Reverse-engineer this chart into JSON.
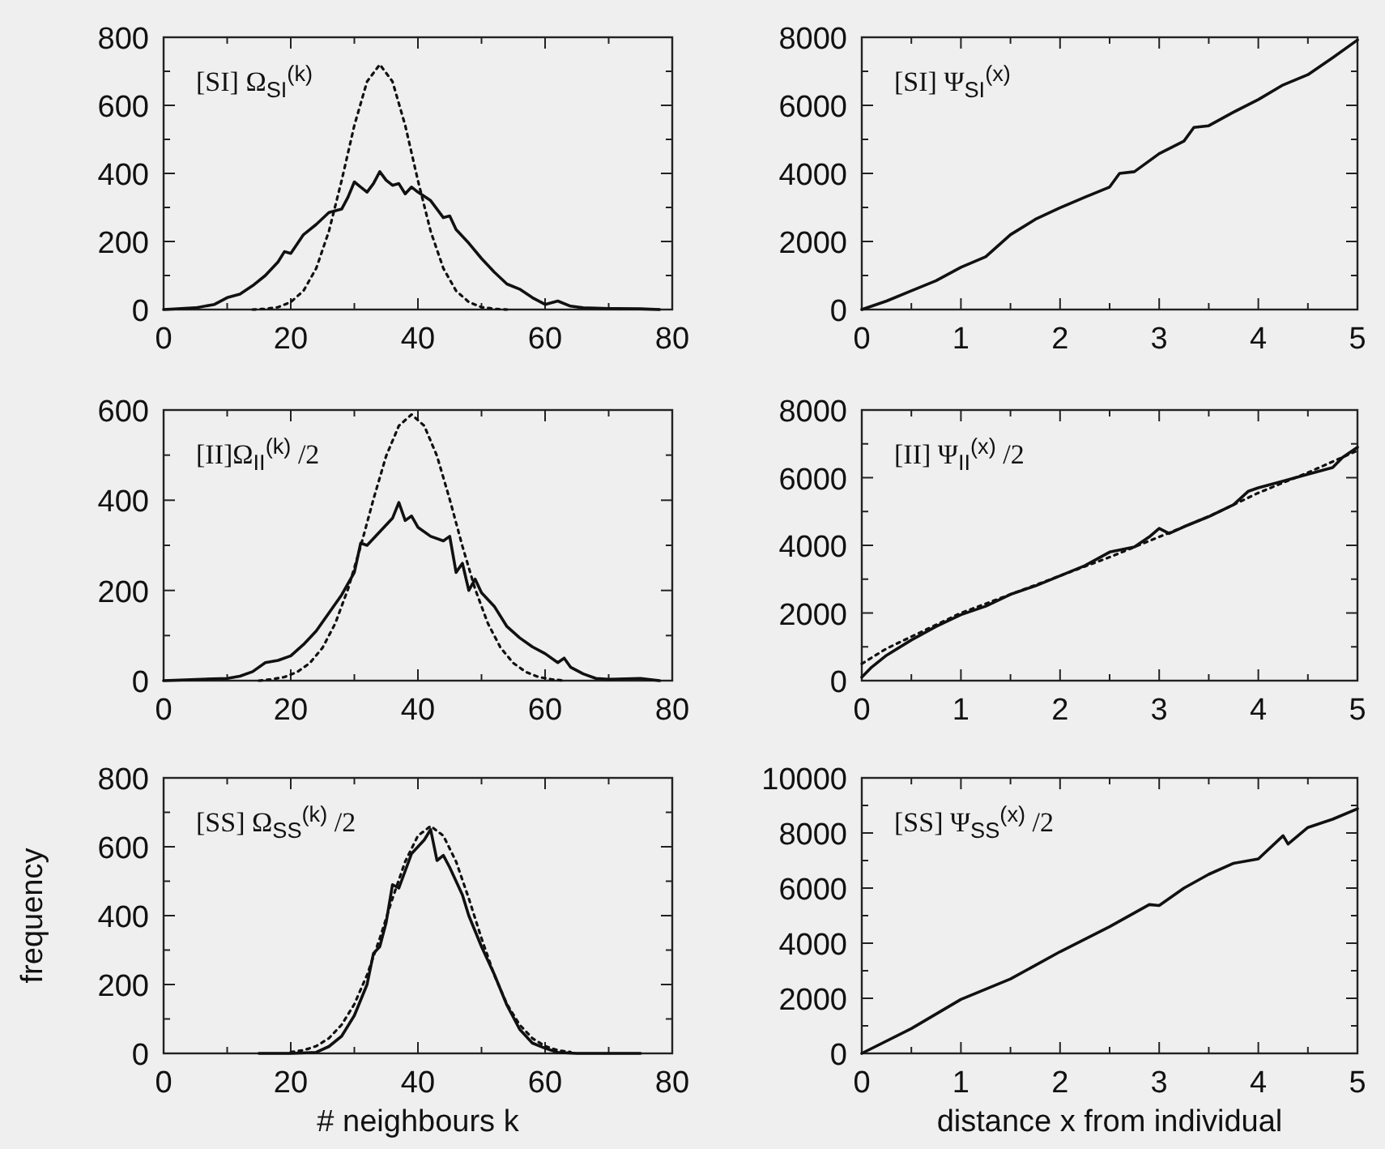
{
  "chart_data": [
    {
      "type": "line",
      "title": "[SI] Ω$_{SI}$$^{(k)}$",
      "xlim": [
        0,
        80
      ],
      "ylim": [
        0,
        800
      ],
      "xticks": [
        0,
        {
          "value": 10,
          "label": null
        },
        20,
        {
          "value": 30,
          "label": null
        },
        40,
        {
          "value": 50,
          "label": null
        },
        60,
        {
          "value": 70,
          "label": null
        },
        80
      ],
      "yticks": [
        0,
        {
          "value": 100,
          "label": null
        },
        200,
        {
          "value": 300,
          "label": null
        },
        400,
        {
          "value": 500,
          "label": null
        },
        600,
        {
          "value": 700,
          "label": null
        },
        800
      ],
      "series": [
        {
          "color": "#111111",
          "line_style": "solid",
          "x": [
            0,
            5,
            8,
            10,
            12,
            14,
            16,
            18,
            19,
            20,
            22,
            24,
            26,
            28,
            29,
            30,
            31,
            32,
            33,
            34,
            35,
            36,
            37,
            38,
            39,
            40,
            42,
            44,
            45,
            46,
            48,
            50,
            52,
            54,
            56,
            58,
            60,
            62,
            64,
            66,
            70,
            75,
            78
          ],
          "values": [
            0,
            5,
            15,
            35,
            45,
            70,
            100,
            140,
            170,
            165,
            220,
            250,
            285,
            295,
            330,
            375,
            360,
            345,
            370,
            405,
            380,
            365,
            370,
            340,
            360,
            345,
            320,
            270,
            275,
            235,
            195,
            150,
            110,
            75,
            60,
            35,
            15,
            25,
            10,
            5,
            3,
            2,
            0
          ]
        },
        {
          "color": "#111111",
          "line_style": "dotted",
          "x": [
            14,
            16,
            18,
            20,
            22,
            24,
            26,
            28,
            30,
            32,
            34,
            36,
            38,
            40,
            42,
            44,
            46,
            48,
            50,
            52,
            54
          ],
          "values": [
            0,
            2,
            7,
            22,
            55,
            121,
            230,
            379,
            541,
            670,
            720,
            670,
            541,
            379,
            230,
            121,
            55,
            22,
            7,
            2,
            0
          ]
        }
      ]
    },
    {
      "type": "line",
      "title": "[SI] Ψ$_{SI}$$^{(x)}$",
      "xlim": [
        0,
        5
      ],
      "ylim": [
        0,
        8000
      ],
      "xticks": [
        0,
        {
          "value": 0.5,
          "label": null
        },
        1,
        {
          "value": 1.5,
          "label": null
        },
        2,
        {
          "value": 2.5,
          "label": null
        },
        3,
        {
          "value": 3.5,
          "label": null
        },
        4,
        {
          "value": 4.5,
          "label": null
        },
        5
      ],
      "yticks": [
        0,
        {
          "value": 1000,
          "label": null
        },
        2000,
        {
          "value": 3000,
          "label": null
        },
        4000,
        {
          "value": 5000,
          "label": null
        },
        6000,
        {
          "value": 7000,
          "label": null
        },
        8000
      ],
      "series": [
        {
          "color": "#111111",
          "line_style": "solid",
          "x": [
            0,
            0.25,
            0.5,
            0.75,
            1,
            1.25,
            1.5,
            1.75,
            2,
            2.25,
            2.5,
            2.6,
            2.75,
            3,
            3.25,
            3.35,
            3.5,
            3.75,
            4,
            4.25,
            4.5,
            4.75,
            5
          ],
          "values": [
            0,
            250,
            550,
            850,
            1240,
            1550,
            2200,
            2650,
            2990,
            3300,
            3600,
            4000,
            4050,
            4580,
            4950,
            5350,
            5400,
            5800,
            6170,
            6600,
            6900,
            7400,
            7920
          ]
        }
      ]
    },
    {
      "type": "line",
      "title": "[II]Ω$_{II}$$^{(k)}$ /2",
      "xlim": [
        0,
        80
      ],
      "ylim": [
        0,
        600
      ],
      "xticks": [
        0,
        {
          "value": 10,
          "label": null
        },
        20,
        {
          "value": 30,
          "label": null
        },
        40,
        {
          "value": 50,
          "label": null
        },
        60,
        {
          "value": 70,
          "label": null
        },
        80
      ],
      "yticks": [
        0,
        {
          "value": 100,
          "label": null
        },
        200,
        {
          "value": 300,
          "label": null
        },
        400,
        {
          "value": 500,
          "label": null
        },
        600
      ],
      "series": [
        {
          "color": "#111111",
          "line_style": "solid",
          "x": [
            0,
            10,
            12,
            14,
            16,
            18,
            20,
            22,
            24,
            26,
            28,
            30,
            31,
            32,
            34,
            36,
            37,
            38,
            39,
            40,
            42,
            44,
            45,
            46,
            47,
            48,
            49,
            50,
            52,
            54,
            56,
            58,
            60,
            62,
            63,
            64,
            66,
            68,
            70,
            75,
            78
          ],
          "values": [
            0,
            5,
            10,
            20,
            40,
            45,
            55,
            80,
            110,
            150,
            190,
            240,
            305,
            300,
            330,
            360,
            395,
            355,
            365,
            340,
            320,
            310,
            320,
            240,
            260,
            200,
            225,
            195,
            165,
            120,
            95,
            75,
            60,
            40,
            50,
            30,
            15,
            5,
            3,
            5,
            0
          ]
        },
        {
          "color": "#111111",
          "line_style": "dotted",
          "x": [
            15,
            17,
            19,
            21,
            23,
            25,
            27,
            29,
            31,
            33,
            35,
            37,
            39,
            41,
            43,
            45,
            47,
            49,
            51,
            53,
            55,
            57,
            59,
            61,
            63
          ],
          "values": [
            0,
            3,
            8,
            19,
            39,
            73,
            127,
            203,
            298,
            402,
            498,
            565,
            590,
            565,
            498,
            402,
            298,
            203,
            127,
            73,
            39,
            19,
            8,
            3,
            0
          ]
        }
      ]
    },
    {
      "type": "line",
      "title": "[II] Ψ$_{II}$$^{(x)}$ /2",
      "xlim": [
        0,
        5
      ],
      "ylim": [
        0,
        8000
      ],
      "xticks": [
        0,
        {
          "value": 0.5,
          "label": null
        },
        1,
        {
          "value": 1.5,
          "label": null
        },
        2,
        {
          "value": 2.5,
          "label": null
        },
        3,
        {
          "value": 3.5,
          "label": null
        },
        4,
        {
          "value": 4.5,
          "label": null
        },
        5
      ],
      "yticks": [
        0,
        {
          "value": 1000,
          "label": null
        },
        2000,
        {
          "value": 3000,
          "label": null
        },
        4000,
        {
          "value": 5000,
          "label": null
        },
        6000,
        {
          "value": 7000,
          "label": null
        },
        8000
      ],
      "series": [
        {
          "color": "#111111",
          "line_style": "dotted",
          "x": [
            0,
            0.25,
            0.5,
            1,
            1.5,
            2,
            2.5,
            3,
            3.5,
            4,
            4.5,
            5
          ],
          "values": [
            500,
            950,
            1300,
            2000,
            2550,
            3100,
            3650,
            4250,
            4850,
            5550,
            6150,
            6800
          ]
        },
        {
          "color": "#111111",
          "line_style": "solid",
          "x": [
            0,
            0.1,
            0.25,
            0.5,
            0.75,
            1,
            1.25,
            1.5,
            1.75,
            2,
            2.25,
            2.5,
            2.75,
            2.9,
            3,
            3.1,
            3.25,
            3.5,
            3.75,
            3.9,
            4,
            4.25,
            4.5,
            4.75,
            4.85,
            5
          ],
          "values": [
            100,
            400,
            750,
            1200,
            1600,
            1950,
            2200,
            2550,
            2800,
            3100,
            3400,
            3800,
            3950,
            4250,
            4500,
            4350,
            4550,
            4850,
            5200,
            5600,
            5700,
            5900,
            6100,
            6300,
            6600,
            6900
          ]
        }
      ]
    },
    {
      "type": "line",
      "title": "[SS] Ω$_{SS}$$^{(k)}$ /2",
      "xlabel": "# neighbours k",
      "ylabel": "frequency",
      "xlim": [
        0,
        80
      ],
      "ylim": [
        0,
        800
      ],
      "xticks": [
        0,
        {
          "value": 10,
          "label": null
        },
        20,
        {
          "value": 30,
          "label": null
        },
        40,
        {
          "value": 50,
          "label": null
        },
        60,
        {
          "value": 70,
          "label": null
        },
        80
      ],
      "yticks": [
        0,
        {
          "value": 100,
          "label": null
        },
        200,
        {
          "value": 300,
          "label": null
        },
        400,
        {
          "value": 500,
          "label": null
        },
        600,
        {
          "value": 700,
          "label": null
        },
        800
      ],
      "series": [
        {
          "color": "#111111",
          "line_style": "solid",
          "x": [
            15,
            20,
            24,
            26,
            28,
            30,
            32,
            33,
            34,
            35,
            36,
            37,
            38,
            39,
            40,
            41,
            42,
            43,
            44,
            45,
            46,
            47,
            48,
            50,
            52,
            54,
            56,
            58,
            60,
            62,
            65,
            75
          ],
          "values": [
            0,
            0,
            3,
            20,
            50,
            110,
            200,
            290,
            310,
            380,
            490,
            480,
            530,
            580,
            600,
            620,
            650,
            560,
            575,
            540,
            500,
            460,
            400,
            310,
            230,
            140,
            70,
            30,
            15,
            3,
            0,
            0
          ]
        },
        {
          "color": "#111111",
          "line_style": "dotted",
          "x": [
            20,
            22,
            24,
            26,
            28,
            30,
            32,
            34,
            36,
            38,
            40,
            42,
            44,
            46,
            48,
            50,
            52,
            54,
            56,
            58,
            60,
            62,
            64
          ],
          "values": [
            4,
            9,
            21,
            44,
            83,
            143,
            228,
            334,
            450,
            557,
            632,
            660,
            632,
            557,
            450,
            334,
            228,
            143,
            83,
            44,
            21,
            9,
            4
          ]
        }
      ]
    },
    {
      "type": "line",
      "title": "[SS] Ψ$_{SS}$$^{(x)}$ /2",
      "xlabel": "distance x from individual",
      "xlim": [
        0,
        5
      ],
      "ylim": [
        0,
        10000
      ],
      "xticks": [
        0,
        {
          "value": 0.5,
          "label": null
        },
        1,
        {
          "value": 1.5,
          "label": null
        },
        2,
        {
          "value": 2.5,
          "label": null
        },
        3,
        {
          "value": 3.5,
          "label": null
        },
        4,
        {
          "value": 4.5,
          "label": null
        },
        5
      ],
      "yticks": [
        0,
        {
          "value": 1000,
          "label": null
        },
        2000,
        {
          "value": 3000,
          "label": null
        },
        4000,
        {
          "value": 5000,
          "label": null
        },
        6000,
        {
          "value": 7000,
          "label": null
        },
        8000,
        {
          "value": 9000,
          "label": null
        },
        10000
      ],
      "series": [
        {
          "color": "#111111",
          "line_style": "solid",
          "x": [
            0,
            0.5,
            1,
            1.5,
            2,
            2.5,
            2.9,
            3,
            3.25,
            3.5,
            3.75,
            4,
            4.25,
            4.3,
            4.5,
            4.75,
            5
          ],
          "values": [
            0,
            900,
            1960,
            2700,
            3690,
            4600,
            5400,
            5370,
            6000,
            6500,
            6900,
            7060,
            7900,
            7600,
            8200,
            8500,
            8880
          ]
        }
      ]
    }
  ]
}
